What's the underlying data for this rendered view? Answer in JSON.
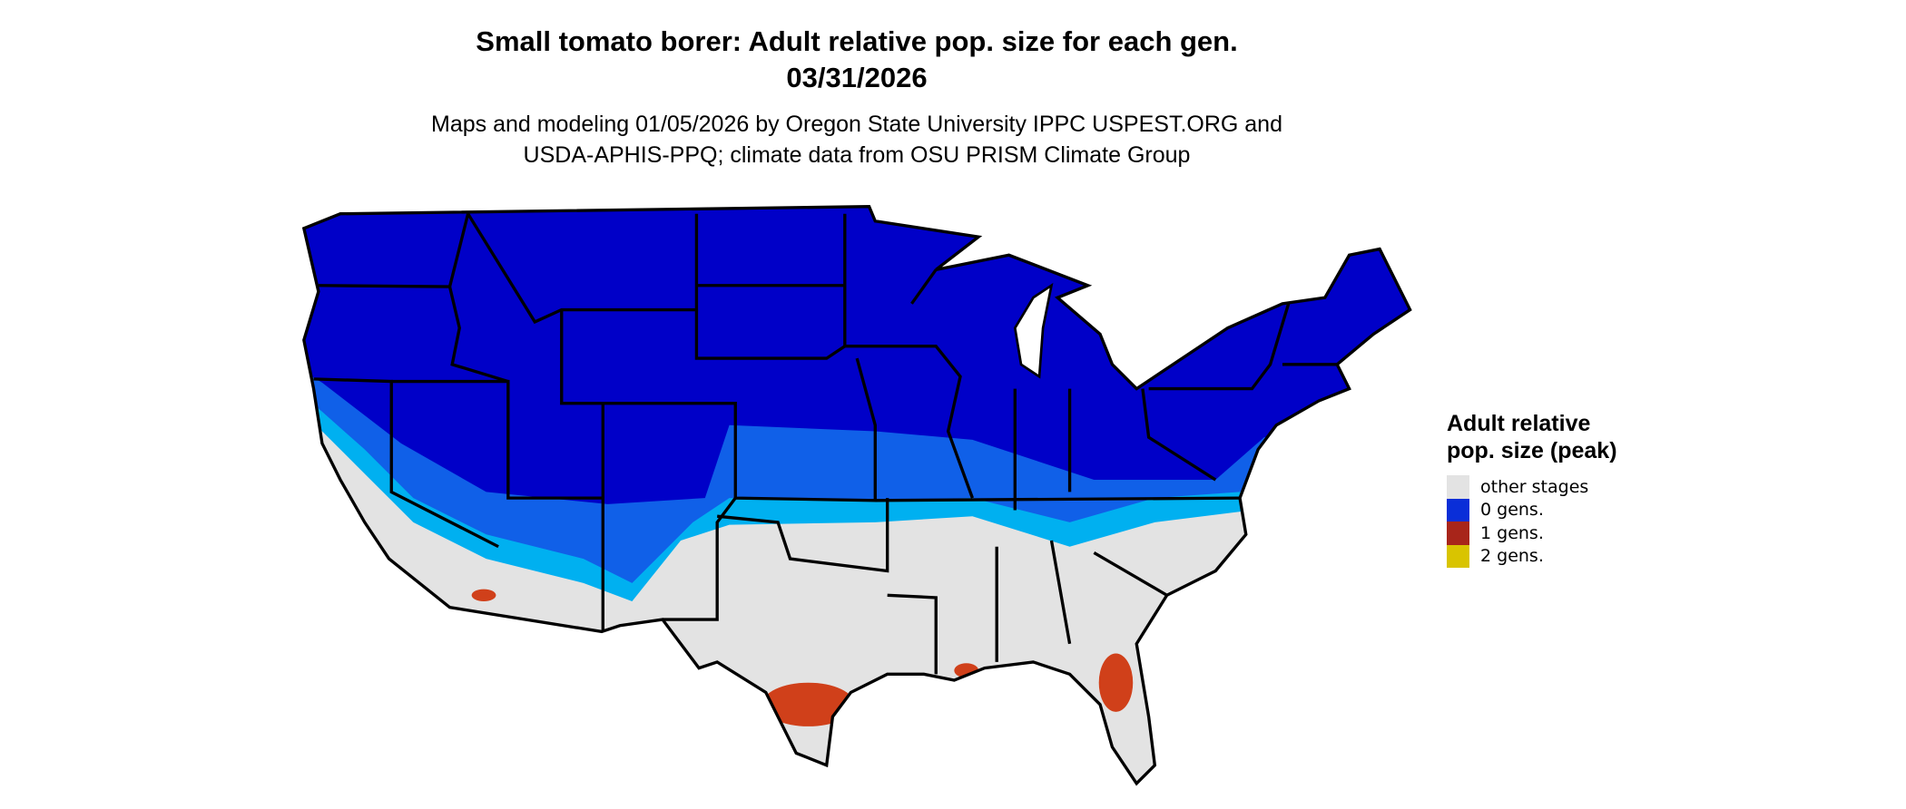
{
  "title": "Small tomato borer: Adult relative pop. size for each gen.",
  "date": "03/31/2026",
  "subtitle_line1": "Maps and modeling 01/05/2026 by Oregon State University IPPC USPEST.ORG and",
  "subtitle_line2": "USDA-APHIS-PPQ; climate data from OSU PRISM Climate Group",
  "legend": {
    "title": "Adult relative pop. size (peak)",
    "items": [
      {
        "label": "other stages",
        "color": "#e3e3e3"
      },
      {
        "label": "0 gens.",
        "color": "#0a2ed8"
      },
      {
        "label": "1 gens.",
        "color": "#a8251a"
      },
      {
        "label": "2 gens.",
        "color": "#d9c400"
      }
    ]
  },
  "map_colors": {
    "zero_gens_dark": "#0000c8",
    "zero_gens_mid": "#1060e8",
    "zero_gens_light": "#00b0f0",
    "one_gen": "#d0401a",
    "border": "#000000"
  }
}
